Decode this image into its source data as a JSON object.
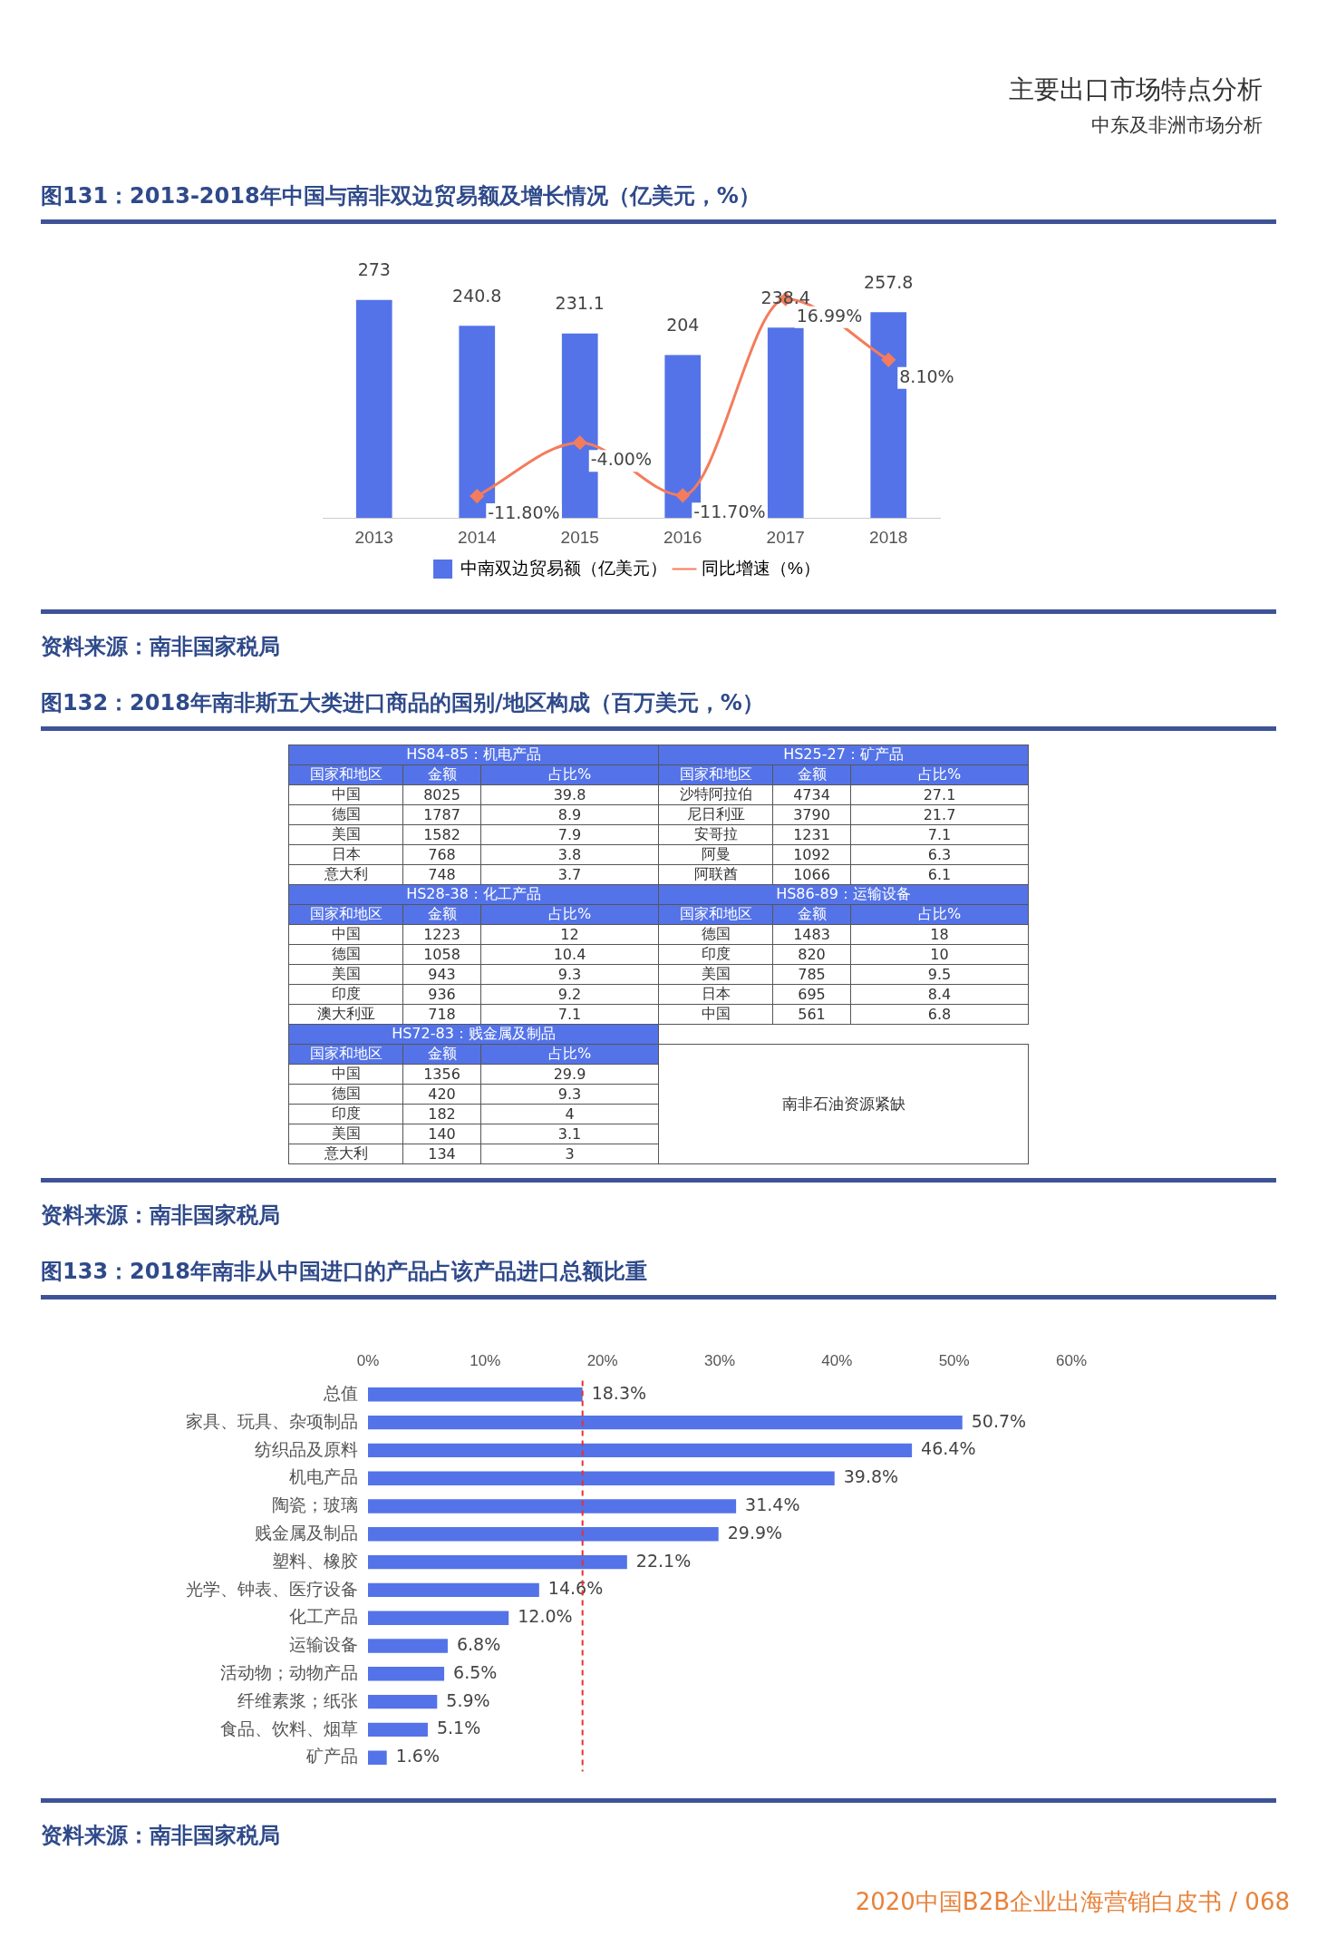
{
  "chart_data": [
    {
      "type": "bar",
      "title": "图131：2013-2018年中国与南非双边贸易额及增长情况（亿美元，%）",
      "categories": [
        "2013",
        "2014",
        "2015",
        "2016",
        "2017",
        "2018"
      ],
      "series": [
        {
          "name": "中南双边贸易额（亿美元）",
          "color": "#5473e8",
          "values": [
            273,
            240.8,
            231.1,
            204,
            238.4,
            257.8
          ]
        },
        {
          "name": "同比增速（%）",
          "type": "line",
          "axis": "y2",
          "color": "#f47c5c",
          "marker": "diamond",
          "values": [
            null,
            -11.8,
            -4.0,
            -11.7,
            16.99,
            8.1
          ],
          "value_labels": [
            null,
            "-11.80%",
            "-4.00%",
            "-11.70%",
            "16.99%",
            "8.10%"
          ]
        }
      ],
      "data_labels": true,
      "legend": "bottom",
      "grid": false,
      "tick_labels": "x",
      "annotations": [
        "主要出口市场特点分析",
        "中东及非洲市场分析",
        "资料来源：南非国家税局"
      ]
    },
    {
      "type": "other",
      "title": "图132：2018年南非斯五大类进口商品的国别/地区构成（百万美元，%）",
      "categories": [
        "HS84-85：机电产品",
        "HS25-27：矿产品",
        "HS28-38：化工产品",
        "HS86-89：运输设备",
        "HS72-83：贱金属及制品"
      ],
      "cell_labels": [
        [
          [
            "国家和地区",
            "金额",
            "占比%"
          ],
          [
            "中国",
            "8025",
            "39.8"
          ],
          [
            "德国",
            "1787",
            "8.9"
          ],
          [
            "美国",
            "1582",
            "7.9"
          ],
          [
            "日本",
            "768",
            "3.8"
          ],
          [
            "意大利",
            "748",
            "3.7"
          ]
        ],
        [
          [
            "国家和地区",
            "金额",
            "占比%"
          ],
          [
            "沙特阿拉伯",
            "4734",
            "27.1"
          ],
          [
            "尼日利亚",
            "3790",
            "21.7"
          ],
          [
            "安哥拉",
            "1231",
            "7.1"
          ],
          [
            "阿曼",
            "1092",
            "6.3"
          ],
          [
            "阿联酋",
            "1066",
            "6.1"
          ]
        ],
        [
          [
            "国家和地区",
            "金额",
            "占比%"
          ],
          [
            "中国",
            "1223",
            "12"
          ],
          [
            "德国",
            "1058",
            "10.4"
          ],
          [
            "美国",
            "943",
            "9.3"
          ],
          [
            "印度",
            "936",
            "9.2"
          ],
          [
            "澳大利亚",
            "718",
            "7.1"
          ]
        ],
        [
          [
            "国家和地区",
            "金额",
            "占比%"
          ],
          [
            "德国",
            "1483",
            "18"
          ],
          [
            "印度",
            "820",
            "10"
          ],
          [
            "美国",
            "785",
            "9.5"
          ],
          [
            "日本",
            "695",
            "8.4"
          ],
          [
            "中国",
            "561",
            "6.8"
          ]
        ],
        [
          [
            "国家和地区",
            "金额",
            "占比%"
          ],
          [
            "中国",
            "1356",
            "29.9"
          ],
          [
            "德国",
            "420",
            "9.3"
          ],
          [
            "印度",
            "182",
            "4"
          ],
          [
            "美国",
            "140",
            "3.1"
          ],
          [
            "意大利",
            "134",
            "3"
          ]
        ]
      ],
      "annotations": [
        "南非石油资源紧缺",
        "资料来源：南非国家税局"
      ]
    },
    {
      "type": "bar",
      "orientation": "horizontal",
      "title": "图133：2018年南非从中国进口的产品占该产品进口总额比重",
      "categories": [
        "总值",
        "家具、玩具、杂项制品",
        "纺织品及原料",
        "机电产品",
        "陶瓷；玻璃",
        "贱金属及制品",
        "塑料、橡胶",
        "光学、钟表、医疗设备",
        "化工产品",
        "运输设备",
        "活动物；动物产品",
        "纤维素浆；纸张",
        "食品、饮料、烟草",
        "矿产品"
      ],
      "values": [
        18.3,
        50.7,
        46.4,
        39.8,
        31.4,
        29.9,
        22.1,
        14.6,
        12.0,
        6.8,
        6.5,
        5.9,
        5.1,
        1.6
      ],
      "value_labels": [
        "18.3%",
        "50.7%",
        "46.4%",
        "39.8%",
        "31.4%",
        "29.9%",
        "22.1%",
        "14.6%",
        "12.0%",
        "6.8%",
        "6.5%",
        "5.9%",
        "5.1%",
        "1.6%"
      ],
      "color": "#5473e8",
      "xlim": [
        0,
        60
      ],
      "xticks": [
        {
          "value": 0,
          "label": "0%"
        },
        {
          "value": 10,
          "label": "10%"
        },
        {
          "value": 20,
          "label": "20%"
        },
        {
          "value": 30,
          "label": "30%"
        },
        {
          "value": 40,
          "label": "40%"
        },
        {
          "value": 50,
          "label": "50%"
        },
        {
          "value": 60,
          "label": "60%"
        }
      ],
      "grid": false,
      "legend": false,
      "ref_lines": [
        {
          "axis": "x",
          "value": 18.3,
          "color": "#e8312f",
          "line_style": "dashed"
        }
      ],
      "annotations": [
        "资料来源：南非国家税局",
        "2020中国B2B企业出海营销白皮书 / 068"
      ]
    }
  ]
}
